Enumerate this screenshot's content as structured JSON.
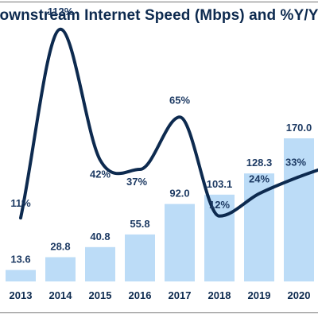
{
  "chart_data": {
    "type": "bar",
    "title": "ownstream Internet Speed (Mbps) and %Y/Y",
    "categories": [
      "2013",
      "2014",
      "2015",
      "2016",
      "2017",
      "2018",
      "2019",
      "2020"
    ],
    "series": [
      {
        "kind": "bar",
        "values": [
          13.6,
          28.8,
          40.8,
          55.8,
          92.0,
          103.1,
          128.3,
          170.0
        ],
        "labels": [
          "13.6",
          "28.8",
          "40.8",
          "55.8",
          "92.0",
          "103.1",
          "128.3",
          "170.0"
        ],
        "color": "#bcdcf7"
      },
      {
        "kind": "line",
        "values": [
          11,
          112,
          42,
          37,
          65,
          12,
          24,
          33
        ],
        "labels": [
          "11%",
          "112%",
          "42%",
          "37%",
          "65%",
          "12%",
          "24%",
          "33%"
        ],
        "color": "#0d2a4f"
      }
    ],
    "grid": false,
    "legend": "none"
  }
}
